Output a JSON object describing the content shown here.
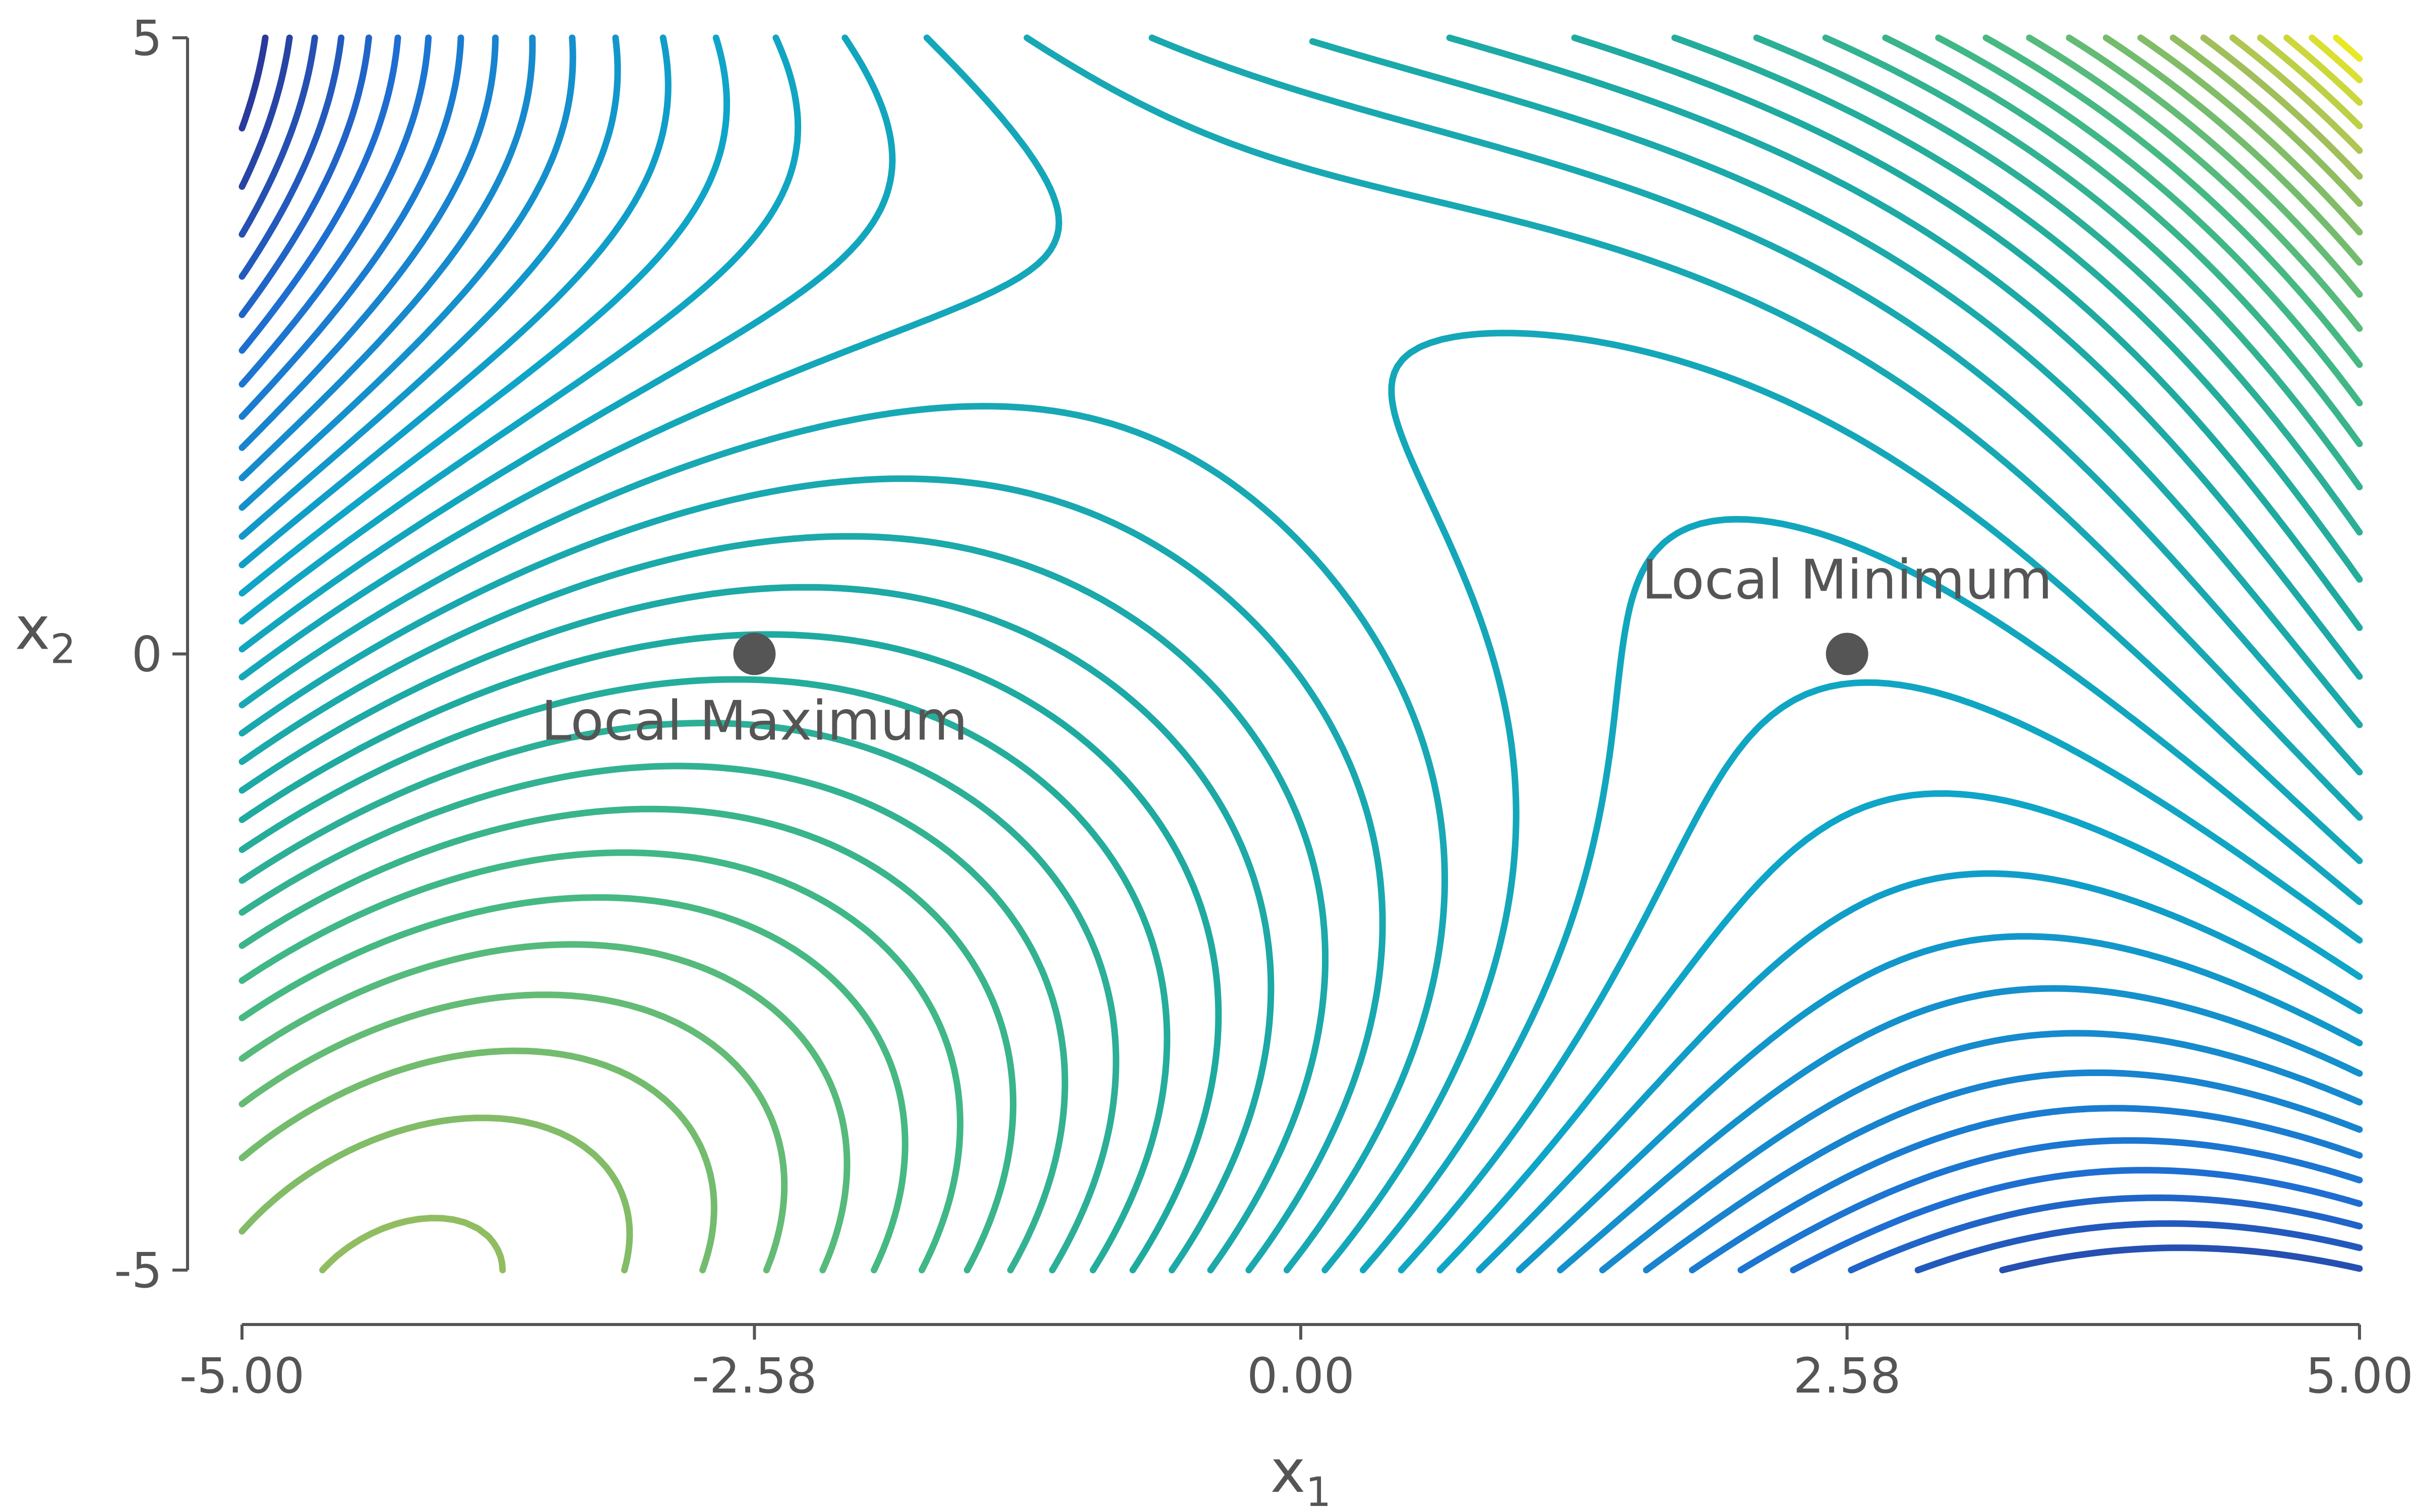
{
  "chart_data": {
    "type": "contour",
    "function": "f(x1, x2) = x1^3/3 - 2*x1 - x1*x2 + x2^2 ... (saddle-shaped surface with one local maximum and one local minimum on the x1 axis)",
    "x": {
      "label": "x",
      "label_subscript": "1",
      "range": [
        -5,
        5
      ],
      "ticks": [
        -5,
        -2.58,
        0,
        2.58,
        5
      ],
      "tick_labels": [
        "-5.00",
        "-2.58",
        "0.00",
        "2.58",
        "5.00"
      ]
    },
    "y": {
      "label": "x",
      "label_subscript": "2",
      "range": [
        -5,
        5
      ],
      "ticks": [
        -5,
        0,
        5
      ],
      "tick_labels": [
        "-5",
        "0",
        "5"
      ]
    },
    "colormap": {
      "name": "viridis-like",
      "low": "#2c2f8f",
      "mid": "#1fa8b0",
      "high": "#f8f01c"
    },
    "contour_levels": 40,
    "points": [
      {
        "label": "Local Maximum",
        "x": -2.58,
        "y": 0,
        "label_position": "below",
        "color": "#555555"
      },
      {
        "label": "Local Minimum",
        "x": 2.58,
        "y": 0,
        "label_position": "above",
        "color": "#555555"
      }
    ],
    "grid": false,
    "legend": "none"
  }
}
